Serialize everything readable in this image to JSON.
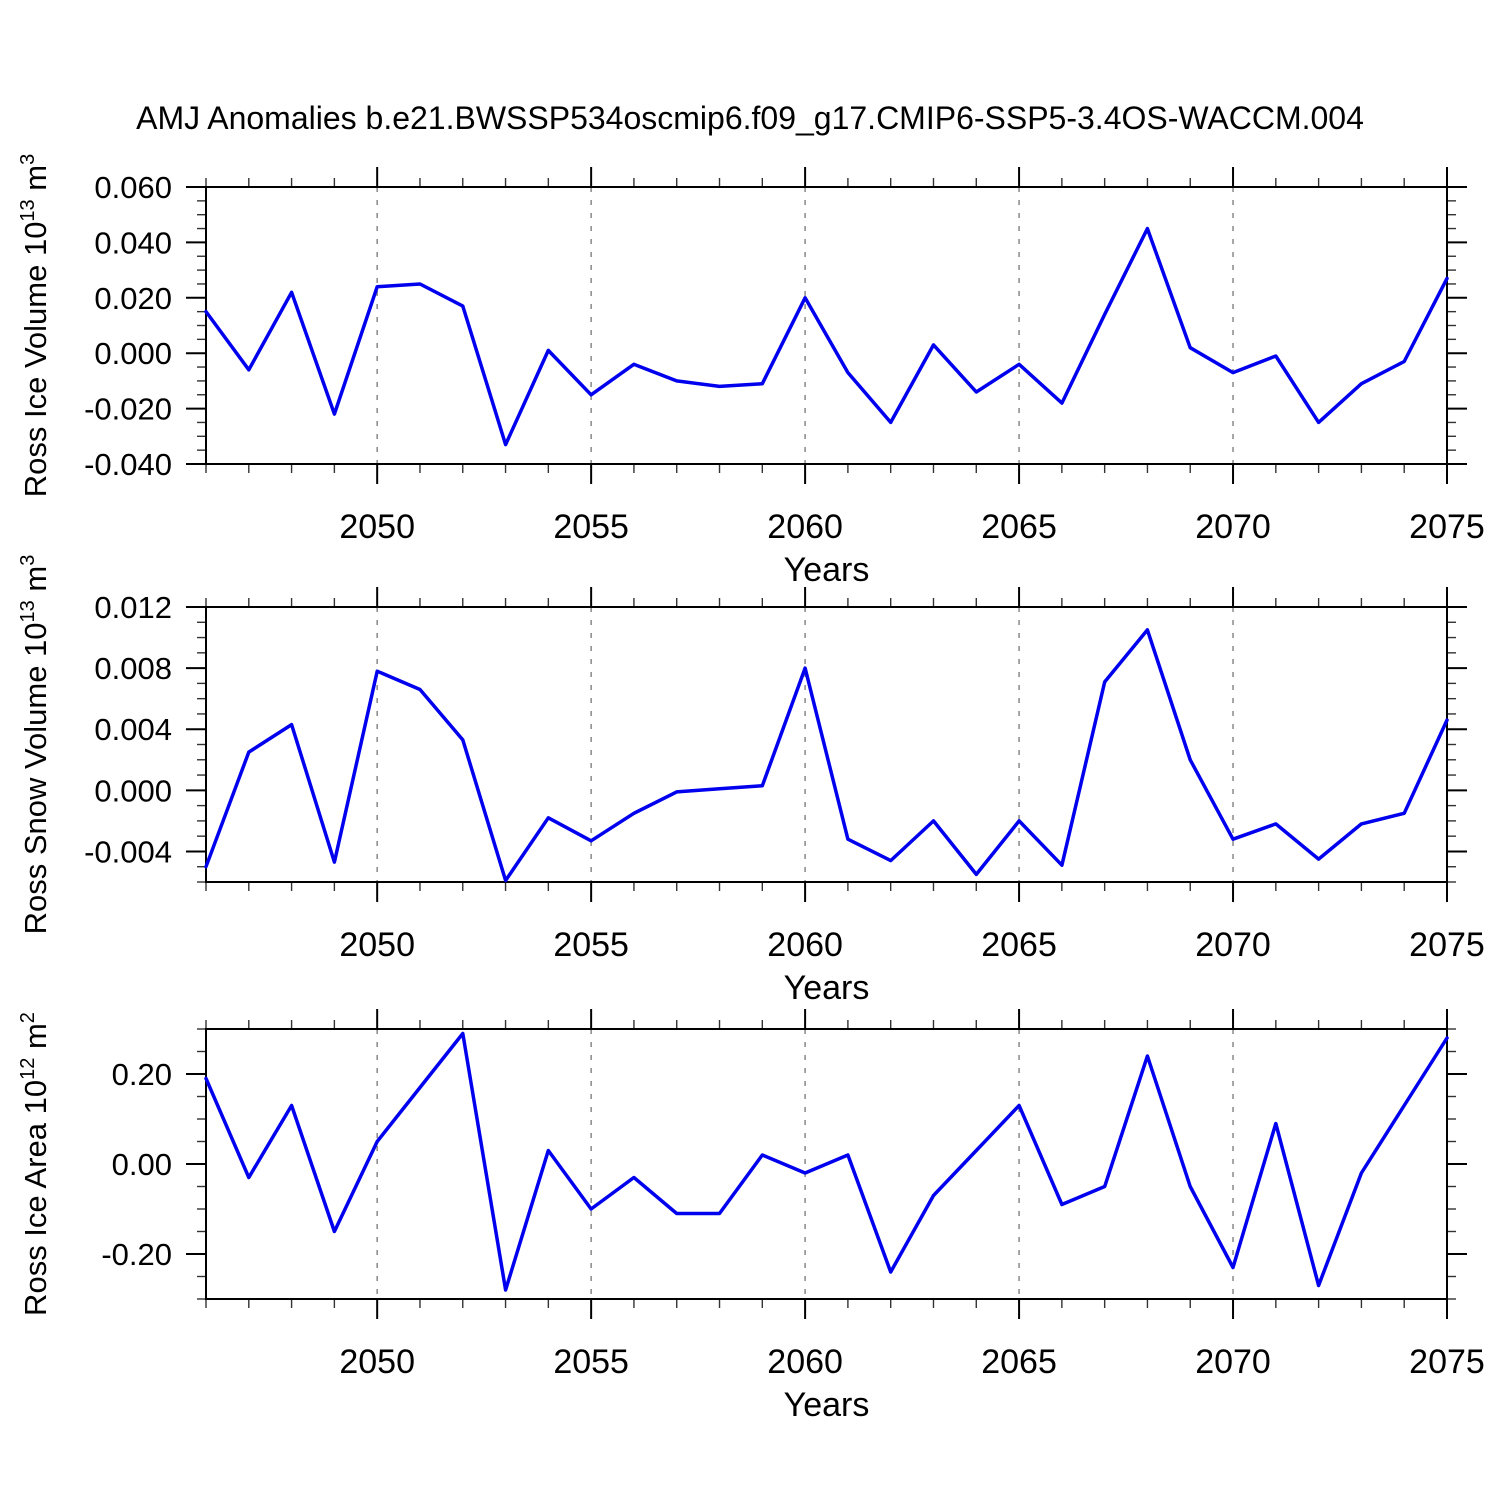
{
  "title": "AMJ Anomalies b.e21.BWSSP534oscmip6.f09_g17.CMIP6-SSP5-3.4OS-WACCM.004",
  "colors": {
    "series_line": "#0000EE",
    "axis": "#000000",
    "minor_tick": "#333333",
    "gridline": "#888888",
    "background": "#ffffff"
  },
  "x_axis": {
    "label": "Years",
    "tick_labels": [
      "2050",
      "2055",
      "2060",
      "2065",
      "2070",
      "2075"
    ],
    "tick_years": [
      2050,
      2055,
      2060,
      2065,
      2070,
      2075
    ],
    "grid_years": [
      2050,
      2055,
      2060,
      2065,
      2070
    ],
    "range": [
      2046,
      2075
    ],
    "minor_step": 1
  },
  "chart_data": [
    {
      "type": "line",
      "title": "",
      "xlabel": "Years",
      "ylabel": "Ross Ice Volume 10^13 m^3",
      "ylabel_parts": [
        [
          "Ross Ice Volume 10",
          false
        ],
        [
          "13",
          true
        ],
        [
          " m",
          false
        ],
        [
          "3",
          true
        ]
      ],
      "x": [
        2046,
        2047,
        2048,
        2049,
        2050,
        2051,
        2052,
        2053,
        2054,
        2055,
        2056,
        2057,
        2058,
        2059,
        2060,
        2061,
        2062,
        2063,
        2064,
        2065,
        2066,
        2067,
        2068,
        2069,
        2070,
        2071,
        2072,
        2073,
        2074,
        2075
      ],
      "values": [
        0.015,
        -0.006,
        0.022,
        -0.022,
        0.024,
        0.025,
        0.017,
        -0.033,
        0.001,
        -0.015,
        -0.004,
        -0.01,
        -0.012,
        -0.011,
        0.02,
        -0.007,
        -0.025,
        0.003,
        -0.014,
        -0.004,
        -0.018,
        0.014,
        0.045,
        0.002,
        -0.007,
        -0.001,
        -0.025,
        -0.011,
        -0.003,
        0.027
      ],
      "ylim": [
        -0.04,
        0.06
      ],
      "yticks": [
        0.06,
        0.04,
        0.02,
        0.0,
        -0.02,
        -0.04
      ],
      "ytick_labels": [
        "0.060",
        "0.040",
        "0.020",
        "0.000",
        "-0.020",
        "-0.040"
      ],
      "y_minor_step": 0.005,
      "grid": "vertical-dashed",
      "legend": null
    },
    {
      "type": "line",
      "title": "",
      "xlabel": "Years",
      "ylabel": "Ross Snow Volume 10^13 m^3",
      "ylabel_parts": [
        [
          "Ross Snow Volume 10",
          false
        ],
        [
          "13",
          true
        ],
        [
          " m",
          false
        ],
        [
          "3",
          true
        ]
      ],
      "x": [
        2046,
        2047,
        2048,
        2049,
        2050,
        2051,
        2052,
        2053,
        2054,
        2055,
        2056,
        2057,
        2058,
        2059,
        2060,
        2061,
        2062,
        2063,
        2064,
        2065,
        2066,
        2067,
        2068,
        2069,
        2070,
        2071,
        2072,
        2073,
        2074,
        2075
      ],
      "values": [
        -0.005,
        0.0025,
        0.0043,
        -0.0047,
        0.0078,
        0.0066,
        0.0033,
        -0.0059,
        -0.0018,
        -0.0033,
        -0.0015,
        -0.0001,
        0.0001,
        0.0003,
        0.008,
        -0.0032,
        -0.0046,
        -0.002,
        -0.0055,
        -0.002,
        -0.0049,
        0.0071,
        0.0105,
        0.002,
        -0.0032,
        -0.0022,
        -0.0045,
        -0.0022,
        -0.0015,
        0.0046
      ],
      "ylim": [
        -0.006,
        0.012
      ],
      "yticks": [
        0.012,
        0.008,
        0.004,
        0.0,
        -0.004
      ],
      "ytick_labels": [
        "0.012",
        "0.008",
        "0.004",
        "0.000",
        "-0.004"
      ],
      "y_minor_step": 0.001,
      "grid": "vertical-dashed",
      "legend": null
    },
    {
      "type": "line",
      "title": "",
      "xlabel": "Years",
      "ylabel": "Ross Ice Area 10^12 m^2",
      "ylabel_parts": [
        [
          "Ross Ice Area 10",
          false
        ],
        [
          "12",
          true
        ],
        [
          " m",
          false
        ],
        [
          "2",
          true
        ]
      ],
      "x": [
        2046,
        2047,
        2048,
        2049,
        2050,
        2051,
        2052,
        2053,
        2054,
        2055,
        2056,
        2057,
        2058,
        2059,
        2060,
        2061,
        2062,
        2063,
        2064,
        2065,
        2066,
        2067,
        2068,
        2069,
        2070,
        2071,
        2072,
        2073,
        2074,
        2075
      ],
      "values": [
        0.19,
        -0.03,
        0.13,
        -0.15,
        0.05,
        0.17,
        0.29,
        -0.28,
        0.03,
        -0.1,
        -0.03,
        -0.11,
        -0.11,
        0.02,
        -0.02,
        0.02,
        -0.24,
        -0.07,
        0.03,
        0.13,
        -0.09,
        -0.05,
        0.24,
        -0.05,
        -0.23,
        0.09,
        -0.27,
        -0.02,
        0.13,
        0.28
      ],
      "ylim": [
        -0.3,
        0.3
      ],
      "yticks": [
        0.2,
        0.0,
        -0.2
      ],
      "ytick_labels": [
        "0.20",
        "0.00",
        "-0.20"
      ],
      "y_minor_step": 0.05,
      "grid": "vertical-dashed",
      "legend": null
    }
  ]
}
